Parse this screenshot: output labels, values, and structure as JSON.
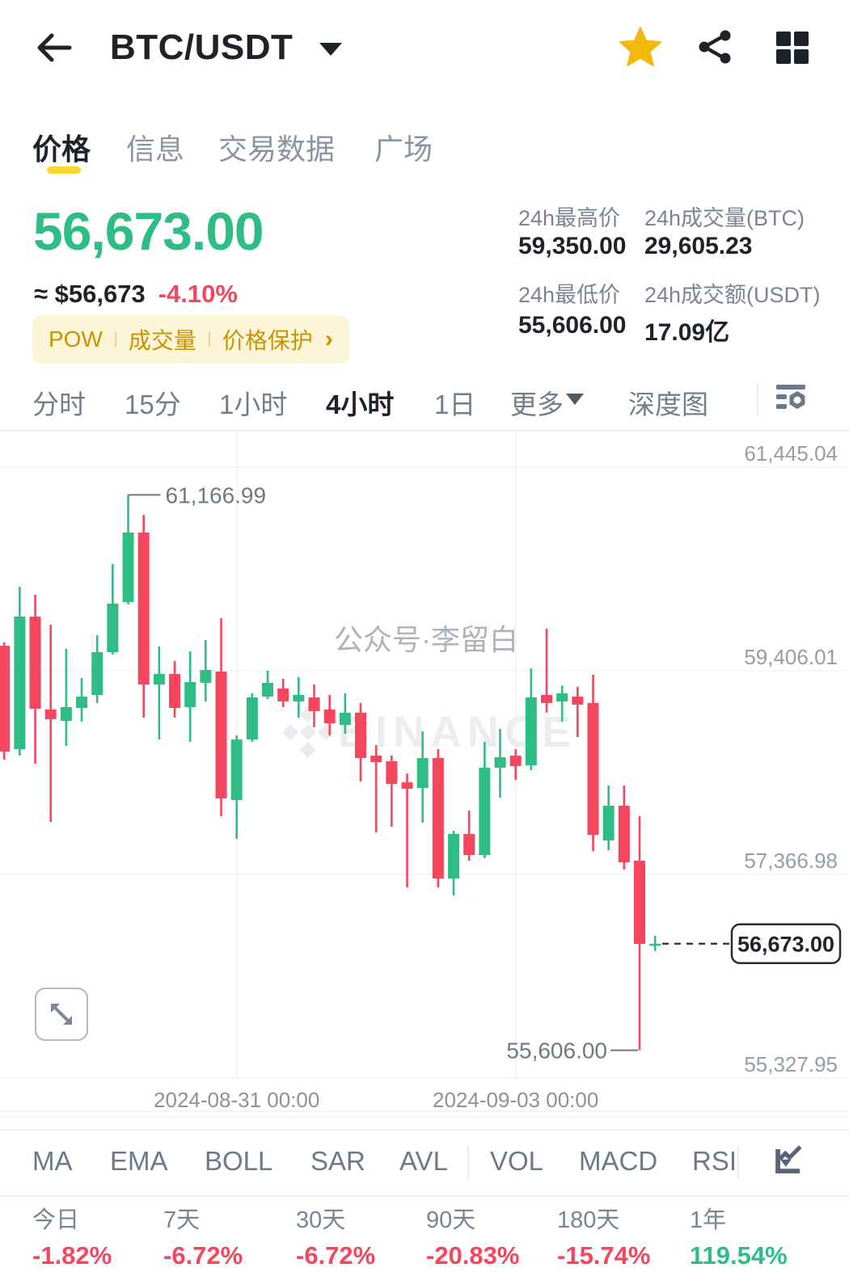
{
  "header": {
    "title": "BTC/USDT"
  },
  "tabs": {
    "items": [
      "价格",
      "信息",
      "交易数据",
      "广场"
    ],
    "active": "价格"
  },
  "price": {
    "value": "56,673.00",
    "fiat": "≈ $56,673",
    "change": "-4.10%"
  },
  "badge": {
    "items": [
      "POW",
      "成交量",
      "价格保护"
    ],
    "arrow": "›"
  },
  "stats": [
    {
      "label": "24h最高价",
      "value": "59,350.00"
    },
    {
      "label": "24h成交量(BTC)",
      "value": "29,605.23"
    },
    {
      "label": "24h最低价",
      "value": "55,606.00"
    },
    {
      "label": "24h成交额(USDT)",
      "value": "17.09亿"
    }
  ],
  "timeframes": {
    "items": [
      "分时",
      "15分",
      "1小时",
      "4小时",
      "1日"
    ],
    "active": "4小时",
    "more": "更多",
    "depth": "深度图"
  },
  "chart_data": {
    "type": "candlestick",
    "interval": "4h",
    "y_axis": {
      "labels": [
        "61,445.04",
        "59,406.01",
        "57,366.98",
        "55,327.95"
      ],
      "values": [
        61445.04,
        59406.01,
        57366.98,
        55327.95
      ]
    },
    "x_axis": {
      "labels": [
        "2024-08-31 00:00",
        "2024-09-03 00:00"
      ],
      "gridline_candle_indices": [
        15,
        33
      ]
    },
    "annotations": {
      "high": {
        "text": "61,166.99",
        "value": 61166.99,
        "candle_index": 8
      },
      "low": {
        "text": "55,606.00",
        "value": 55606.0,
        "candle_index": 41
      },
      "current": {
        "text": "56,673.00",
        "value": 56673.0
      }
    },
    "watermarks": [
      "公众号·李留白",
      "BINANCE"
    ],
    "candles": [
      [
        59657,
        59689,
        58516,
        58597
      ],
      [
        58621,
        60248,
        58556,
        59948
      ],
      [
        59948,
        60167,
        58476,
        59026
      ],
      [
        59018,
        59867,
        57893,
        58921
      ],
      [
        58904,
        59624,
        58654,
        59042
      ],
      [
        59034,
        59333,
        58897,
        59147
      ],
      [
        59164,
        59762,
        59083,
        59592
      ],
      [
        59592,
        60474,
        59568,
        60078
      ],
      [
        60094,
        61166.99,
        60070,
        60790
      ],
      [
        60790,
        60968,
        58937,
        59269
      ],
      [
        59269,
        59649,
        58718,
        59374
      ],
      [
        59374,
        59503,
        58937,
        59034
      ],
      [
        59042,
        59600,
        58694,
        59293
      ],
      [
        59285,
        59713,
        59099,
        59414
      ],
      [
        59398,
        59932,
        57950,
        58128
      ],
      [
        58111,
        58759,
        57723,
        58718
      ],
      [
        58718,
        59180,
        58694,
        59139
      ],
      [
        59147,
        59406,
        59123,
        59285
      ],
      [
        59228,
        59325,
        59042,
        59099
      ],
      [
        59099,
        59341,
        58937,
        59164
      ],
      [
        59139,
        59269,
        58840,
        59002
      ],
      [
        59018,
        59164,
        58759,
        58880
      ],
      [
        58864,
        59180,
        58775,
        58986
      ],
      [
        58986,
        59083,
        58297,
        58532
      ],
      [
        58556,
        58662,
        57787,
        58492
      ],
      [
        58500,
        58556,
        57844,
        58273
      ],
      [
        58289,
        58378,
        57237,
        58225
      ],
      [
        58233,
        58799,
        57885,
        58532
      ],
      [
        58532,
        58621,
        57237,
        57326
      ],
      [
        57326,
        57804,
        57156,
        57771
      ],
      [
        57771,
        58006,
        57504,
        57561
      ],
      [
        57561,
        58694,
        57529,
        58435
      ],
      [
        58435,
        58824,
        58136,
        58540
      ],
      [
        58556,
        58621,
        58314,
        58451
      ],
      [
        58459,
        59430,
        58411,
        59139
      ],
      [
        59164,
        59827,
        58986,
        59083
      ],
      [
        59099,
        59257,
        58897,
        59180
      ],
      [
        59147,
        59245,
        58743,
        59067
      ],
      [
        59083,
        59366,
        57601,
        57763
      ],
      [
        57707,
        58257,
        57610,
        58055
      ],
      [
        58055,
        58257,
        57415,
        57488
      ],
      [
        57504,
        57950,
        55606,
        56671
      ],
      [
        56660,
        56752,
        56600,
        56673
      ]
    ]
  },
  "indicators": {
    "items": [
      "MA",
      "EMA",
      "BOLL",
      "SAR",
      "AVL",
      "VOL",
      "MACD",
      "RSI"
    ]
  },
  "performance": [
    {
      "label": "今日",
      "value": "-1.82%"
    },
    {
      "label": "7天",
      "value": "-6.72%"
    },
    {
      "label": "30天",
      "value": "-6.72%"
    },
    {
      "label": "90天",
      "value": "-20.83%"
    },
    {
      "label": "180天",
      "value": "-15.74%"
    },
    {
      "label": "1年",
      "value": "119.54%"
    }
  ],
  "colors": {
    "up": "#2EBD85",
    "down": "#F6465D",
    "accent": "#FCD535",
    "star": "#F0B90B",
    "badge_bg": "#FDF5D8",
    "badge_text": "#C99402",
    "text_primary": "#1E2329",
    "text_secondary": "#707A8A",
    "grid": "#EFF1F4",
    "annotation": "#6F7984"
  }
}
